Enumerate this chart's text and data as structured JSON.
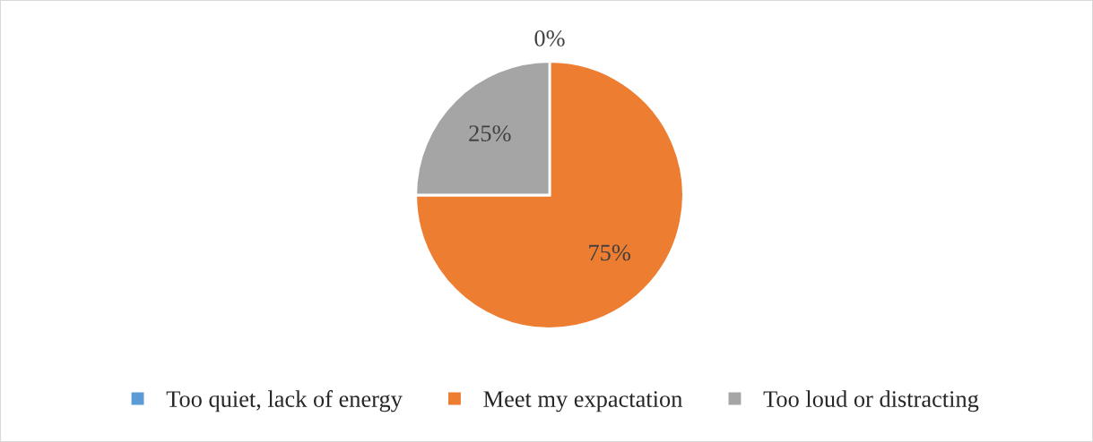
{
  "chart_data": {
    "type": "pie",
    "categories": [
      "Too quiet, lack of energy",
      "Meet my expactation",
      "Too loud or distracting"
    ],
    "values": [
      0,
      75,
      25
    ],
    "colors": [
      "#5b9bd5",
      "#ed7d31",
      "#a5a5a5"
    ],
    "value_labels": [
      "0%",
      "75%",
      "25%"
    ],
    "legend": "bottom"
  }
}
